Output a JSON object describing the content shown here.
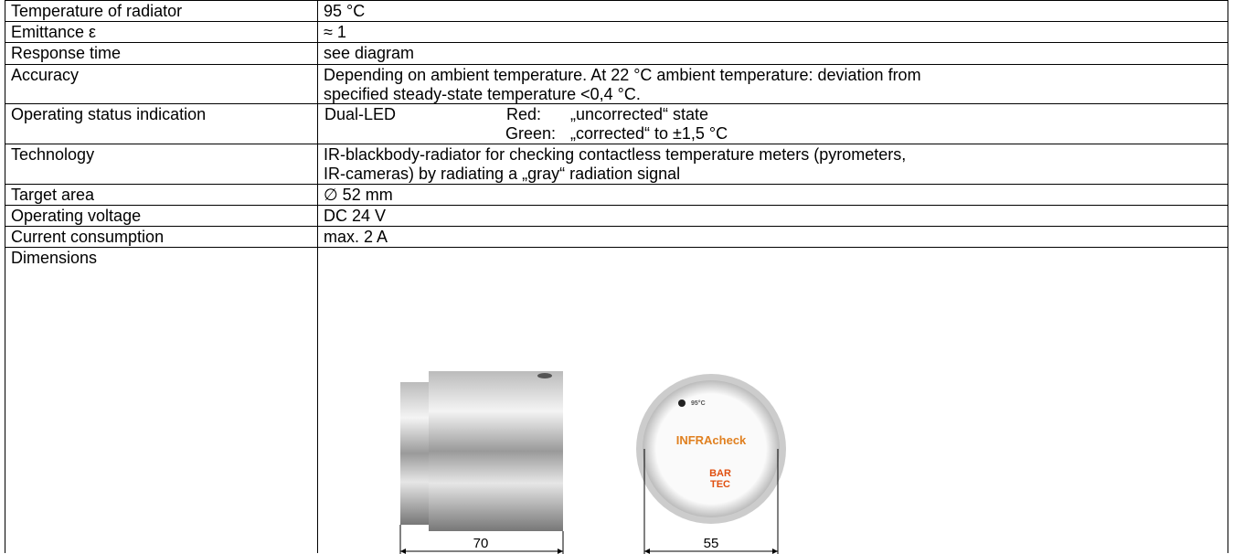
{
  "table": {
    "rows": [
      {
        "label": "Temperature of radiator",
        "lines": [
          "95 °C"
        ]
      },
      {
        "label": "Emittance ε",
        "lines": [
          "≈ 1"
        ]
      },
      {
        "label": "Response time",
        "lines": [
          "see diagram"
        ]
      },
      {
        "label": "Accuracy",
        "lines": [
          "Depending on ambient temperature. At 22 °C ambient temperature: deviation from",
          "specified steady-state temperature <0,4 °C."
        ]
      },
      {
        "label": "Operating status indication",
        "led": "Dual-LED",
        "states": [
          {
            "color": "Red:",
            "text": "„uncorrected“ state"
          },
          {
            "color": "Green:",
            "text": "„corrected“ to ±1,5 °C"
          }
        ]
      },
      {
        "label": "Technology",
        "lines": [
          "IR-blackbody-radiator for checking contactless temperature meters (pyrometers,",
          "IR-cameras) by radiating a „gray“ radiation signal"
        ]
      },
      {
        "label": "Target area",
        "lines": [
          "∅ 52 mm"
        ]
      },
      {
        "label": "Operating voltage",
        "lines": [
          "DC 24 V"
        ]
      },
      {
        "label": "Current consumption",
        "lines": [
          "max. 2 A"
        ]
      },
      {
        "label": "Dimensions",
        "figures": [
          {
            "dimension": "70"
          },
          {
            "dimension": "55",
            "marks": [
              "95°C",
              "INFRAcheck",
              "BAR",
              "TEC"
            ]
          }
        ]
      }
    ]
  }
}
